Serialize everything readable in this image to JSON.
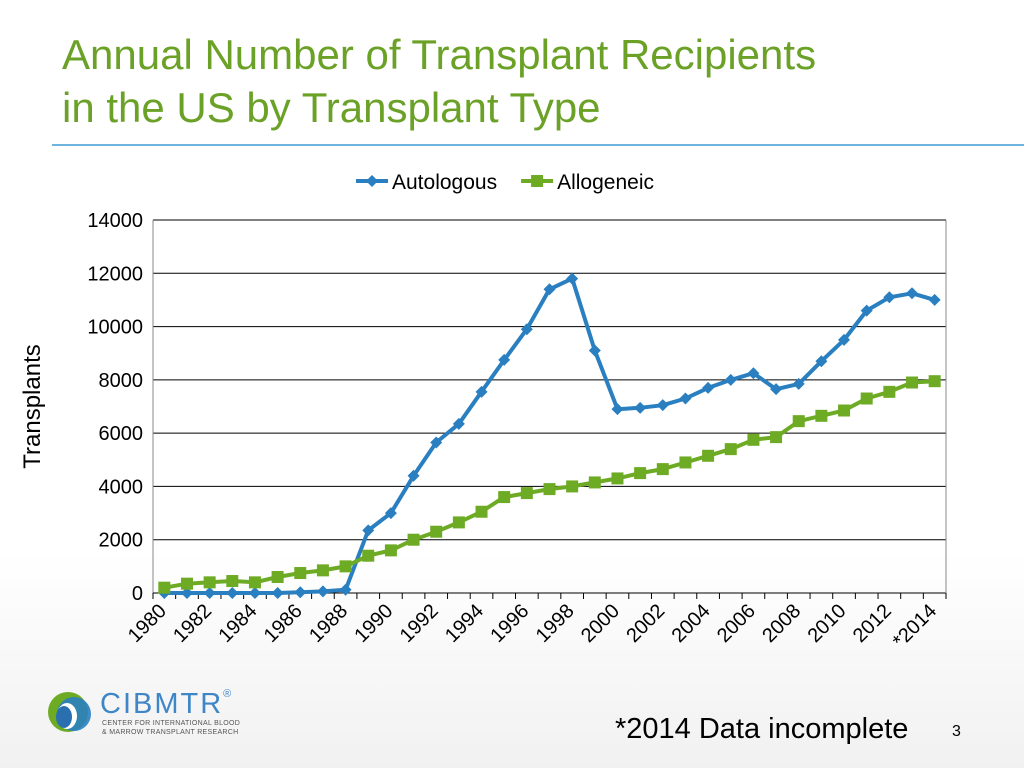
{
  "slide": {
    "title_line1": "Annual Number of Transplant Recipients",
    "title_line2": "in the US by Transplant Type",
    "footnote": "*2014 Data incomplete",
    "page_number": "3",
    "logo": {
      "name": "CIBMTR",
      "registered": "®",
      "tagline_line1": "CENTER FOR INTERNATIONAL BLOOD",
      "tagline_line2": "& MARROW TRANSPLANT RESEARCH"
    }
  },
  "colors": {
    "title": "#6aa126",
    "rule": "#6fb3df",
    "autologous": "#2a7fc0",
    "allogeneic": "#6eab25"
  },
  "chart_data": {
    "type": "line",
    "ylabel": "Transplants",
    "ylim": [
      0,
      14000
    ],
    "yticks": [
      "0",
      "2000",
      "4000",
      "6000",
      "8000",
      "10000",
      "12000",
      "14000"
    ],
    "grid": true,
    "legend": "top",
    "x": [
      "1980",
      "1981",
      "1982",
      "1983",
      "1984",
      "1985",
      "1986",
      "1987",
      "1988",
      "1989",
      "1990",
      "1991",
      "1992",
      "1993",
      "1994",
      "1995",
      "1996",
      "1997",
      "1998",
      "1999",
      "2000",
      "2001",
      "2002",
      "2003",
      "2004",
      "2005",
      "2006",
      "2007",
      "2008",
      "2009",
      "2010",
      "2011",
      "2012",
      "2013",
      "*2014"
    ],
    "xtick_labels": [
      "1980",
      "1982",
      "1984",
      "1986",
      "1988",
      "1990",
      "1992",
      "1994",
      "1996",
      "1998",
      "2000",
      "2002",
      "2004",
      "2006",
      "2008",
      "2010",
      "2012",
      "*2014"
    ],
    "series": [
      {
        "name": "Autologous",
        "marker": "diamond",
        "color": "#2a7fc0",
        "values": [
          0,
          0,
          0,
          0,
          0,
          0,
          30,
          60,
          120,
          2350,
          3000,
          4400,
          5650,
          6350,
          7550,
          8750,
          9900,
          11400,
          11800,
          9100,
          6900,
          6950,
          7050,
          7300,
          7700,
          8000,
          8250,
          7650,
          7850,
          8700,
          9500,
          10600,
          11100,
          11250,
          11000
        ]
      },
      {
        "name": "Allogeneic",
        "marker": "square",
        "color": "#6eab25",
        "values": [
          200,
          350,
          400,
          450,
          400,
          600,
          750,
          850,
          1000,
          1400,
          1600,
          2000,
          2300,
          2650,
          3050,
          3600,
          3750,
          3900,
          4000,
          4150,
          4300,
          4500,
          4650,
          4900,
          5150,
          5400,
          5750,
          5850,
          6450,
          6650,
          6850,
          7300,
          7550,
          7900,
          7950
        ]
      }
    ]
  }
}
